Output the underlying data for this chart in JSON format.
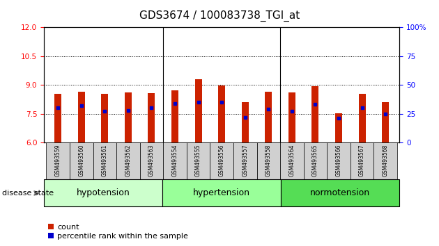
{
  "title": "GDS3674 / 100083738_TGI_at",
  "samples": [
    "GSM493559",
    "GSM493560",
    "GSM493561",
    "GSM493562",
    "GSM493563",
    "GSM493554",
    "GSM493555",
    "GSM493556",
    "GSM493557",
    "GSM493558",
    "GSM493564",
    "GSM493565",
    "GSM493566",
    "GSM493567",
    "GSM493568"
  ],
  "count_values": [
    8.55,
    8.65,
    8.52,
    8.62,
    8.58,
    8.7,
    9.28,
    8.98,
    8.1,
    8.63,
    8.6,
    8.93,
    7.52,
    8.55,
    8.12
  ],
  "percentile_values": [
    30,
    32,
    27,
    28,
    30,
    34,
    35,
    35,
    22,
    29,
    27,
    33,
    21,
    30,
    25
  ],
  "ylim_left": [
    6,
    12
  ],
  "ylim_right": [
    0,
    100
  ],
  "yticks_left": [
    6,
    7.5,
    9,
    10.5,
    12
  ],
  "yticks_right": [
    0,
    25,
    50,
    75,
    100
  ],
  "groups": [
    {
      "label": "hypotension",
      "start": 0,
      "end": 5,
      "color": "#ccffcc"
    },
    {
      "label": "hypertension",
      "start": 5,
      "end": 10,
      "color": "#99ff99"
    },
    {
      "label": "normotension",
      "start": 10,
      "end": 15,
      "color": "#55dd55"
    }
  ],
  "bar_color": "#cc2200",
  "dot_color": "#0000cc",
  "bar_width": 0.3,
  "title_fontsize": 11,
  "group_label_fontsize": 9,
  "tick_fontsize": 7.5,
  "sample_fontsize": 5.5,
  "legend_fontsize": 8,
  "disease_state_label": "disease state",
  "legend_items": [
    "count",
    "percentile rank within the sample"
  ]
}
